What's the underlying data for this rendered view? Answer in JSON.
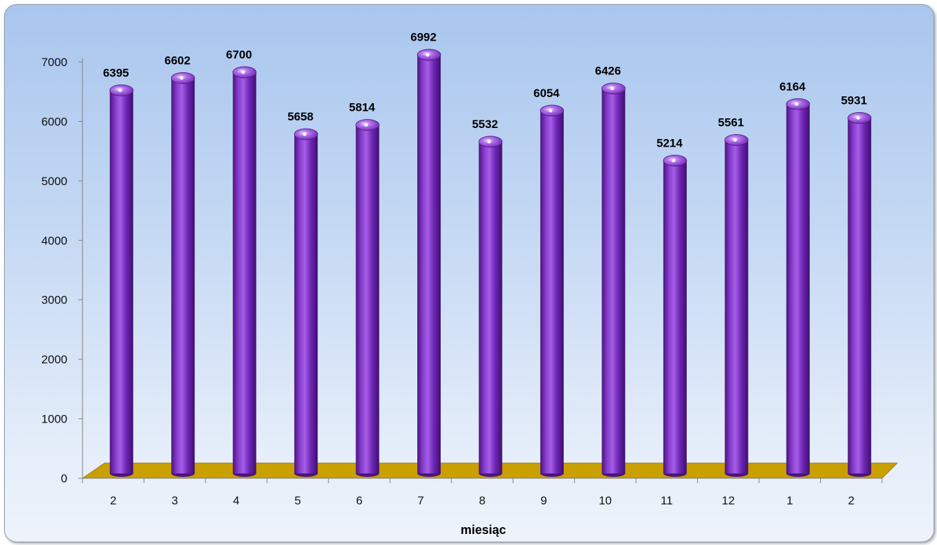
{
  "chart_data": {
    "type": "bar",
    "title": "",
    "xlabel": "miesiąc",
    "ylabel": "",
    "ylim": [
      0,
      7000
    ],
    "yticks": [
      "0",
      "1000",
      "2000",
      "3000",
      "4000",
      "5000",
      "6000",
      "7000"
    ],
    "categories": [
      "2",
      "3",
      "4",
      "5",
      "6",
      "7",
      "8",
      "9",
      "10",
      "11",
      "12",
      "1",
      "2"
    ],
    "values": [
      6395,
      6602,
      6700,
      5658,
      5814,
      6992,
      5532,
      6054,
      6426,
      5214,
      5561,
      6164,
      5931
    ],
    "value_labels": [
      "6395",
      "6602",
      "6700",
      "5658",
      "5814",
      "6992",
      "5532",
      "6054",
      "6426",
      "5214",
      "5561",
      "6164",
      "5931"
    ],
    "grid": false,
    "legend": "none",
    "bar_shape": "cylinder",
    "colors": {
      "bar": "#7a2fbf",
      "bar_dark": "#4b1480",
      "bar_light": "#c07ef0",
      "floor": "#c9a000",
      "floor_dark": "#9a7a00",
      "background_top": "#a9c6ee",
      "background_bottom": "#eef3fb"
    }
  }
}
